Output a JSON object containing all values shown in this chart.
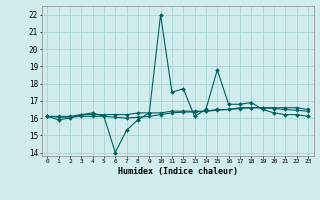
{
  "xlabel": "Humidex (Indice chaleur)",
  "x_values": [
    0,
    1,
    2,
    3,
    4,
    5,
    6,
    7,
    8,
    9,
    10,
    11,
    12,
    13,
    14,
    15,
    16,
    17,
    18,
    19,
    20,
    21,
    22,
    23
  ],
  "line1_y": [
    16.1,
    15.9,
    16.0,
    16.2,
    16.3,
    16.1,
    14.0,
    15.3,
    15.9,
    16.3,
    22.0,
    17.5,
    17.7,
    16.1,
    16.5,
    18.8,
    16.8,
    16.8,
    16.9,
    16.5,
    16.3,
    16.2,
    16.2,
    16.1
  ],
  "line2_y": [
    16.1,
    16.1,
    16.1,
    16.2,
    16.2,
    16.2,
    16.2,
    16.2,
    16.3,
    16.3,
    16.3,
    16.4,
    16.4,
    16.4,
    16.4,
    16.5,
    16.5,
    16.6,
    16.6,
    16.6,
    16.6,
    16.6,
    16.6,
    16.5
  ],
  "line3_y": [
    16.1,
    16.05,
    16.05,
    16.1,
    16.1,
    16.1,
    16.05,
    16.0,
    16.05,
    16.1,
    16.2,
    16.3,
    16.35,
    16.35,
    16.4,
    16.45,
    16.5,
    16.55,
    16.6,
    16.6,
    16.55,
    16.5,
    16.45,
    16.4
  ],
  "line_color": "#006060",
  "bg_color": "#d0ecec",
  "grid_color": "#a8d4d4",
  "ylim": [
    13.8,
    22.5
  ],
  "yticks": [
    14,
    15,
    16,
    17,
    18,
    19,
    20,
    21,
    22
  ],
  "xticks": [
    0,
    1,
    2,
    3,
    4,
    5,
    6,
    7,
    8,
    9,
    10,
    11,
    12,
    13,
    14,
    15,
    16,
    17,
    18,
    19,
    20,
    21,
    22,
    23
  ]
}
